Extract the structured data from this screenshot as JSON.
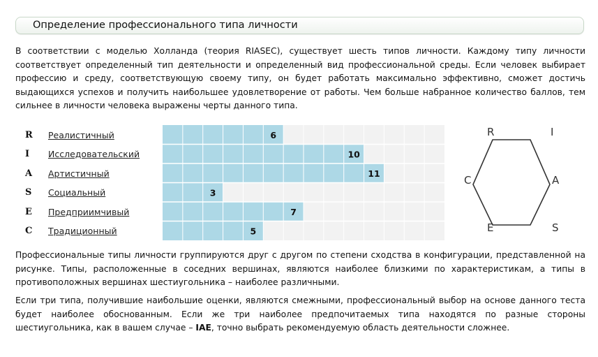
{
  "title": "Определение профессионального типа личности",
  "intro": "В соответствии с моделью Холланда (теория RIASEC), существует шесть типов личности. Каждому типу личности соответствует определенный тип деятельности и определенный вид профессиональной среды. Если человек выбирает профессию и среду, соответствующую своему типу, он будет работать максимально эффективно, сможет достичь выдающихся успехов и получить наибольшее удовлетворение от работы. Чем больше набранное количество баллов, тем сильнее в личности человека выражены черты данного типа.",
  "types": [
    {
      "code": "R",
      "name": "Реалистичный"
    },
    {
      "code": "I",
      "name": "Исследовательский"
    },
    {
      "code": "A",
      "name": "Артистичный"
    },
    {
      "code": "S",
      "name": "Социальный"
    },
    {
      "code": "E",
      "name": "Предприимчивый"
    },
    {
      "code": "C",
      "name": "Традиционный"
    }
  ],
  "chart_data": {
    "type": "bar",
    "orientation": "horizontal",
    "categories": [
      "R",
      "I",
      "A",
      "S",
      "E",
      "C"
    ],
    "values": [
      6,
      10,
      11,
      3,
      7,
      5
    ],
    "xlim": [
      0,
      14
    ],
    "grid": true,
    "bar_color": "#add8e6",
    "background_color": "#f2f2f2"
  },
  "hexagon": {
    "vertices": [
      "R",
      "I",
      "A",
      "S",
      "E",
      "C"
    ]
  },
  "para2": "Профессиональные типы личности группируются друг с другом по степени сходства в конфигурации, представленной на рисунке. Типы, расположенные в соседних вершинах, являются наиболее близкими по характеристикам, а типы в противоположных вершинах шестиугольника – наиболее различными.",
  "para3_before": "Если три типа, получившие наибольшие оценки, являются смежными, профессиональный выбор на основе данного теста будет наиболее обоснованным. Если же три наиболее предпочитаемых типа находятся по разные стороны шестиугольника, как в вашем случае – ",
  "para3_bold": "IAE",
  "para3_after": ", точно выбрать рекомендуемую область деятельности сложнее."
}
